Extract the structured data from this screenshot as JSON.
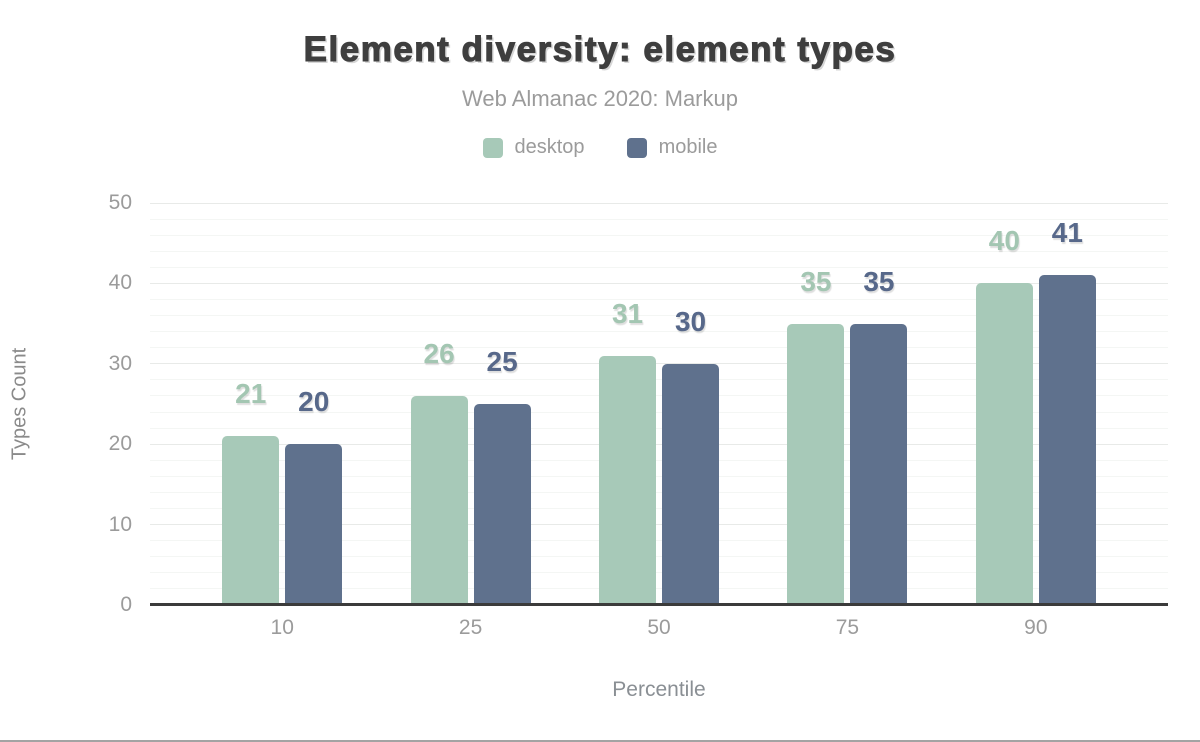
{
  "chart_data": {
    "type": "bar",
    "title": "Element diversity: element types",
    "subtitle": "Web Almanac 2020: Markup",
    "categories": [
      "10",
      "25",
      "50",
      "75",
      "90"
    ],
    "series": [
      {
        "name": "desktop",
        "color": "#a7c9b8",
        "label_color": "#a3c6b2",
        "values": [
          21,
          26,
          31,
          35,
          40
        ]
      },
      {
        "name": "mobile",
        "color": "#5f718d",
        "label_color": "#57688a",
        "values": [
          20,
          25,
          30,
          35,
          41
        ]
      }
    ],
    "xlabel": "Percentile",
    "ylabel": "Types Count",
    "ylim": [
      0,
      50
    ],
    "yticks": [
      0,
      10,
      20,
      30,
      40,
      50
    ],
    "minor_grid_step": 2,
    "grid": true,
    "legend_position": "top",
    "colors": {
      "title": "#3e3e3e",
      "subtitle": "#9b9b9b",
      "tick_labels": "#9b9b9b",
      "axis_titles": "#8a8a8a",
      "axis_line": "#3b3b3b",
      "grid_minor": "#f4f6f4",
      "grid_major": "#e8eae8",
      "background": "#ffffff"
    }
  }
}
